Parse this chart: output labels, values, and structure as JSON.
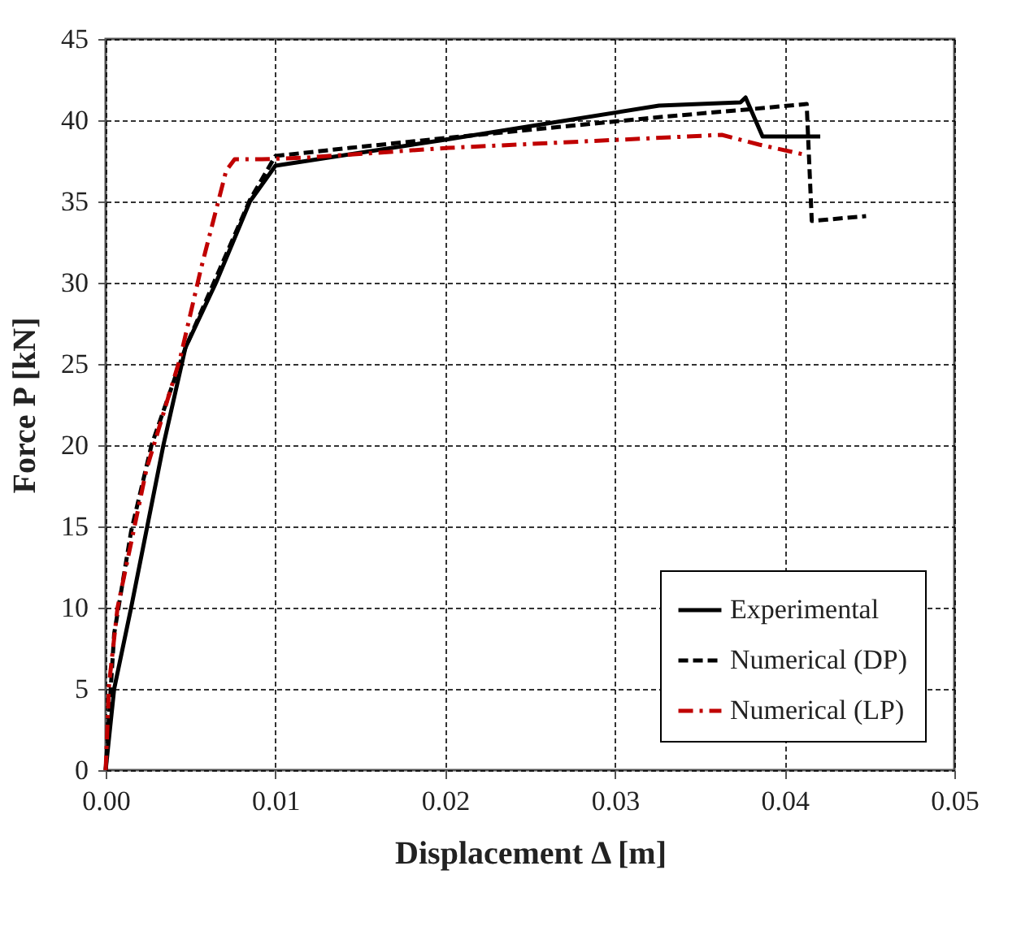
{
  "chart_data": {
    "type": "line",
    "xlabel": "Displacement Δ [m]",
    "ylabel": "Force P [kN]",
    "xlim": [
      0,
      0.05
    ],
    "ylim": [
      0,
      45
    ],
    "xticks": [
      {
        "value": 0,
        "label": "0.00"
      },
      {
        "value": 0.01,
        "label": "0.01"
      },
      {
        "value": 0.02,
        "label": "0.02"
      },
      {
        "value": 0.03,
        "label": "0.03"
      },
      {
        "value": 0.04,
        "label": "0.04"
      },
      {
        "value": 0.05,
        "label": "0.05"
      }
    ],
    "yticks": [
      0,
      5,
      10,
      15,
      20,
      25,
      30,
      35,
      40,
      45
    ],
    "grid": true,
    "legend": "bottom right",
    "marker": "none",
    "series": [
      {
        "name": "Experimental",
        "color": "#000000",
        "line_style": "solid",
        "x": [
          0,
          0.0005,
          0.0015,
          0.0034,
          0.0047,
          0.0065,
          0.0085,
          0.01,
          0.02,
          0.0326,
          0.0374,
          0.0377,
          0.0387,
          0.0421
        ],
        "values": [
          0,
          5,
          10,
          20,
          26,
          30,
          35,
          37.2,
          38.8,
          40.9,
          41.1,
          41.4,
          39,
          39
        ]
      },
      {
        "name": "Numerical (DP)",
        "color": "#000000",
        "line_style": "dashed",
        "x": [
          0,
          0.0005,
          0.0015,
          0.0027,
          0.0047,
          0.0085,
          0.01,
          0.0144,
          0.02,
          0.0327,
          0.0382,
          0.0413,
          0.0416,
          0.0448
        ],
        "values": [
          0,
          8.4,
          14.7,
          20,
          26,
          35.1,
          37.8,
          38.3,
          38.9,
          40.2,
          40.7,
          41,
          33.8,
          34.1
        ]
      },
      {
        "name": "Numerical (LP)",
        "color": "#c00000",
        "line_style": "dashdot",
        "x": [
          0,
          0.0002,
          0.0007,
          0.0024,
          0.0044,
          0.0056,
          0.0071,
          0.0076,
          0.0092,
          0.0118,
          0.0202,
          0.0363,
          0.0385,
          0.0411
        ],
        "values": [
          0,
          5.3,
          10,
          18.5,
          25.4,
          30.8,
          36.9,
          37.6,
          37.6,
          37.7,
          38.3,
          39.1,
          38.5,
          37.9
        ]
      }
    ]
  }
}
